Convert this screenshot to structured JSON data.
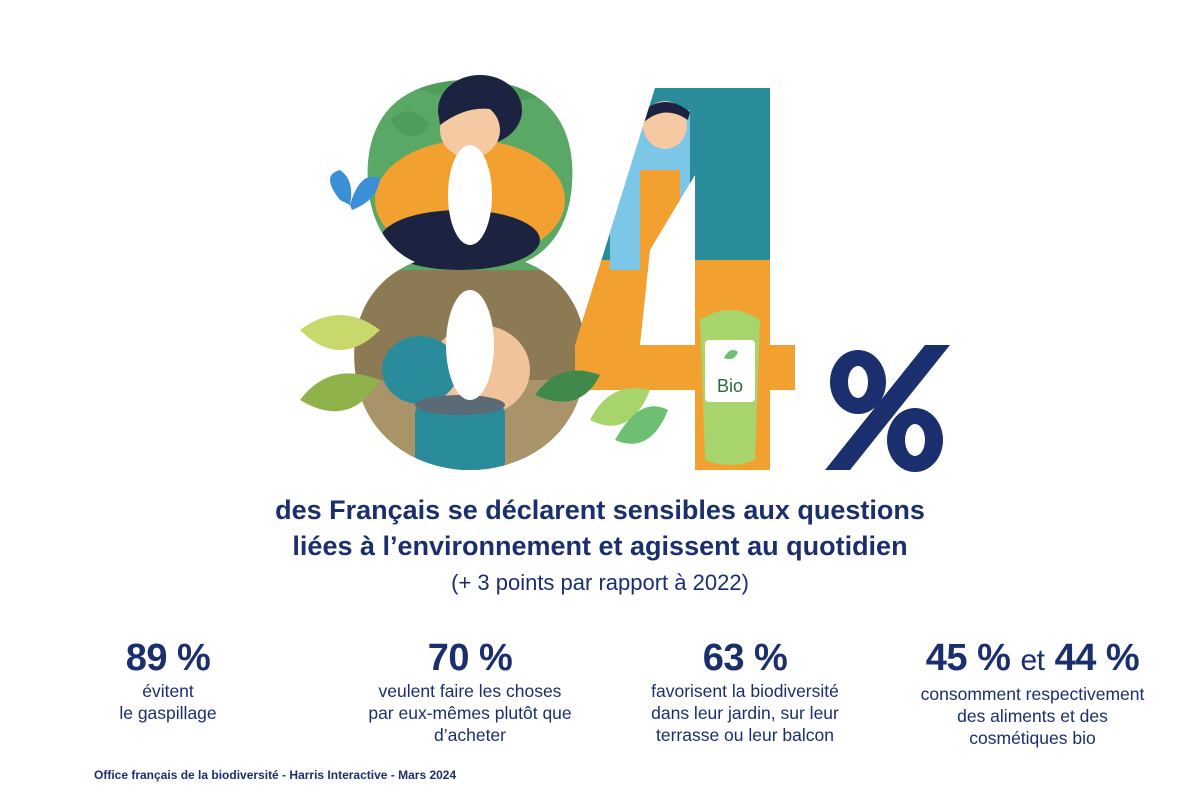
{
  "hero": {
    "big_number": "84",
    "percent_sign": "%",
    "bio_label": "Bio"
  },
  "headline": {
    "line1": "des Français se déclarent sensibles aux questions",
    "line2": "liées à l’environnement et agissent au quotidien",
    "subline": "(+ 3 points par rapport à 2022)"
  },
  "stats": [
    {
      "value": "89 %",
      "desc_lines": [
        "évitent",
        "le gaspillage"
      ]
    },
    {
      "value": "70 %",
      "desc_lines": [
        "veulent faire les choses",
        "par eux-mêmes plutôt que",
        "d’acheter"
      ]
    },
    {
      "value": "63 %",
      "desc_lines": [
        "favorisent la biodiversité",
        "dans leur jardin, sur leur",
        "terrasse ou leur balcon"
      ]
    },
    {
      "value_a": "45 %",
      "conj": "et",
      "value_b": "44 %",
      "desc_lines": [
        "consomment respectivement",
        "des aliments et des",
        "cosmétiques bio"
      ]
    }
  ],
  "source": "Office français de la biodiversité - Harris Interactive - Mars 2024",
  "colors": {
    "navy": "#1b2f6e",
    "teal": "#2a8b9b",
    "orange": "#f2a130",
    "green": "#6fbf73",
    "light_green": "#a7d46b",
    "sky": "#7cc6e8"
  }
}
